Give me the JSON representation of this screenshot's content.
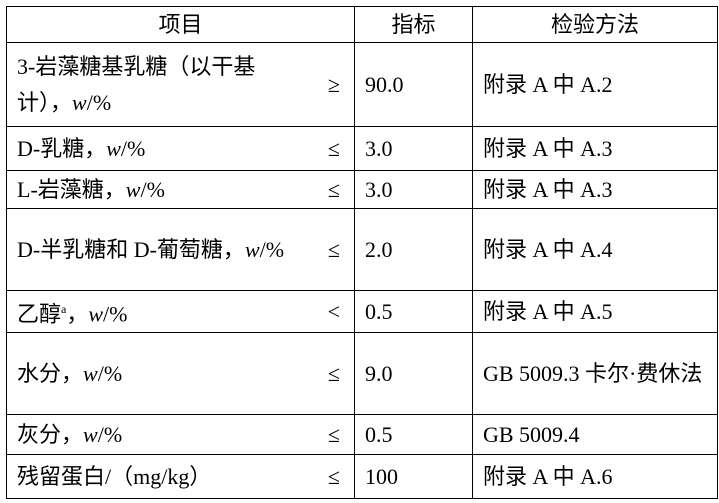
{
  "table": {
    "header": [
      "项目",
      "指标",
      "检验方法"
    ],
    "rows": [
      {
        "item": [
          {
            "text": "3-岩藻糖基乳糖（以干基计），"
          },
          {
            "text": "w",
            "style": "italic"
          },
          {
            "text": "/%"
          }
        ],
        "operator": "≥",
        "value": "90.0",
        "method": "附录 A 中 A.2"
      },
      {
        "item": [
          {
            "text": "D-乳糖，"
          },
          {
            "text": "w",
            "style": "italic"
          },
          {
            "text": "/%"
          }
        ],
        "operator": "≤",
        "value": "3.0",
        "method": "附录 A 中 A.3"
      },
      {
        "item": [
          {
            "text": "L-岩藻糖，"
          },
          {
            "text": "w",
            "style": "italic"
          },
          {
            "text": "/%"
          }
        ],
        "operator": "≤",
        "value": "3.0",
        "method": "附录 A 中 A.3"
      },
      {
        "item": [
          {
            "text": "D-半乳糖和 D-葡萄糖，"
          },
          {
            "text": "w",
            "style": "italic"
          },
          {
            "text": "/%"
          }
        ],
        "operator": "≤",
        "value": "2.0",
        "method": "附录 A 中 A.4"
      },
      {
        "item": [
          {
            "text": "乙醇"
          },
          {
            "text": "a",
            "style": "superscript"
          },
          {
            "text": "，"
          },
          {
            "text": "w",
            "style": "italic"
          },
          {
            "text": "/%"
          }
        ],
        "operator": "<",
        "value": "0.5",
        "method": "附录 A 中 A.5"
      },
      {
        "item": [
          {
            "text": "水分，"
          },
          {
            "text": "w",
            "style": "italic"
          },
          {
            "text": "/%"
          }
        ],
        "operator": "≤",
        "value": "9.0",
        "method": "GB 5009.3 卡尔·费休法"
      },
      {
        "item": [
          {
            "text": "灰分，"
          },
          {
            "text": "w",
            "style": "italic"
          },
          {
            "text": "/%"
          }
        ],
        "operator": "≤",
        "value": "0.5",
        "method": "GB 5009.4"
      },
      {
        "item": [
          {
            "text": "残留蛋白/（mg/kg）"
          }
        ],
        "operator": "≤",
        "value": "100",
        "method": "附录 A 中 A.6"
      }
    ]
  }
}
